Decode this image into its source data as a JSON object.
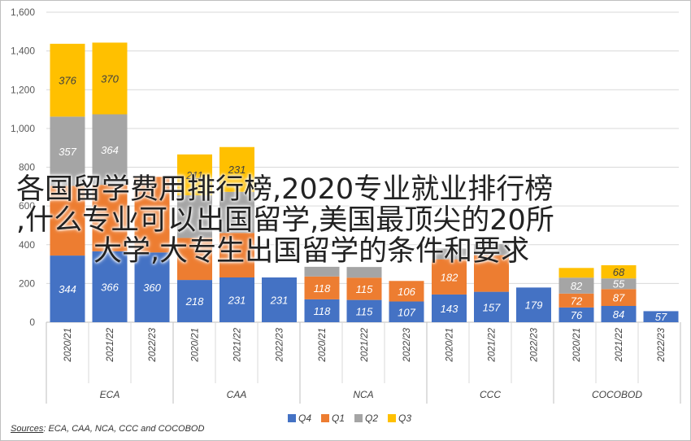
{
  "chart_data": {
    "type": "bar",
    "stacked": true,
    "ylim": [
      0,
      1600
    ],
    "yticks": [
      0,
      200,
      400,
      600,
      800,
      1000,
      1200,
      1400,
      1600
    ],
    "ytick_labels": [
      "0",
      "200",
      "400",
      "600",
      "800",
      "1,000",
      "1,200",
      "1,400",
      "1,600"
    ],
    "grid": true,
    "legend_position": "bottom",
    "groups": [
      {
        "name": "ECA",
        "categories": [
          "2020/21",
          "2021/22",
          "2022/23"
        ]
      },
      {
        "name": "CAA",
        "categories": [
          "2020/21",
          "2021/22",
          "2022/23"
        ]
      },
      {
        "name": "NCA",
        "categories": [
          "2020/21",
          "2021/22",
          "2022/23"
        ]
      },
      {
        "name": "CCC",
        "categories": [
          "2020/21",
          "2021/22",
          "2022/23"
        ]
      },
      {
        "name": "COCOBOD",
        "categories": [
          "2020/21",
          "2021/22",
          "2022/23"
        ]
      }
    ],
    "series": [
      {
        "name": "Q4",
        "color": "#4472C4",
        "values": [
          344,
          366,
          360,
          218,
          231,
          231,
          118,
          115,
          107,
          143,
          157,
          179,
          76,
          84,
          57
        ]
      },
      {
        "name": "Q1",
        "color": "#ED7D31",
        "values": [
          360,
          343,
          390,
          217,
          230,
          null,
          118,
          115,
          106,
          182,
          189,
          null,
          72,
          87,
          null
        ]
      },
      {
        "name": "Q2",
        "color": "#A5A5A5",
        "values": [
          357,
          364,
          null,
          220,
          212,
          null,
          50,
          55,
          null,
          55,
          58,
          null,
          82,
          55,
          null
        ]
      },
      {
        "name": "Q3",
        "color": "#FFC000",
        "values": [
          376,
          370,
          null,
          211,
          231,
          null,
          null,
          null,
          null,
          null,
          null,
          null,
          50,
          68,
          null
        ]
      }
    ],
    "data_labels": [
      [
        "344",
        "366",
        "360",
        "218",
        "231",
        "231",
        "118",
        "115",
        "107",
        "143",
        "157",
        "179",
        "76",
        "84",
        "57"
      ],
      [
        "",
        "",
        "",
        "",
        "",
        "",
        "118",
        "115",
        "106",
        "182",
        "",
        "",
        "72",
        "87",
        ""
      ],
      [
        "357",
        "364",
        "",
        "",
        "",
        "",
        "",
        "",
        "",
        "",
        "",
        "",
        "82",
        "55",
        ""
      ],
      [
        "376",
        "370",
        "",
        "211",
        "231",
        "",
        "",
        "",
        "",
        "",
        "",
        "",
        "",
        "68",
        ""
      ]
    ],
    "source_label": "Sources",
    "source_text": ": ECA, CAA, NCA, CCC and COCOBOD"
  },
  "overlay": {
    "line1": "各国留学费用排行榜,2020专业就业排行榜",
    "line2": ",什么专业可以出国留学,美国最顶尖的20所",
    "line3": "大学,大专生出国留学的条件和要求"
  }
}
